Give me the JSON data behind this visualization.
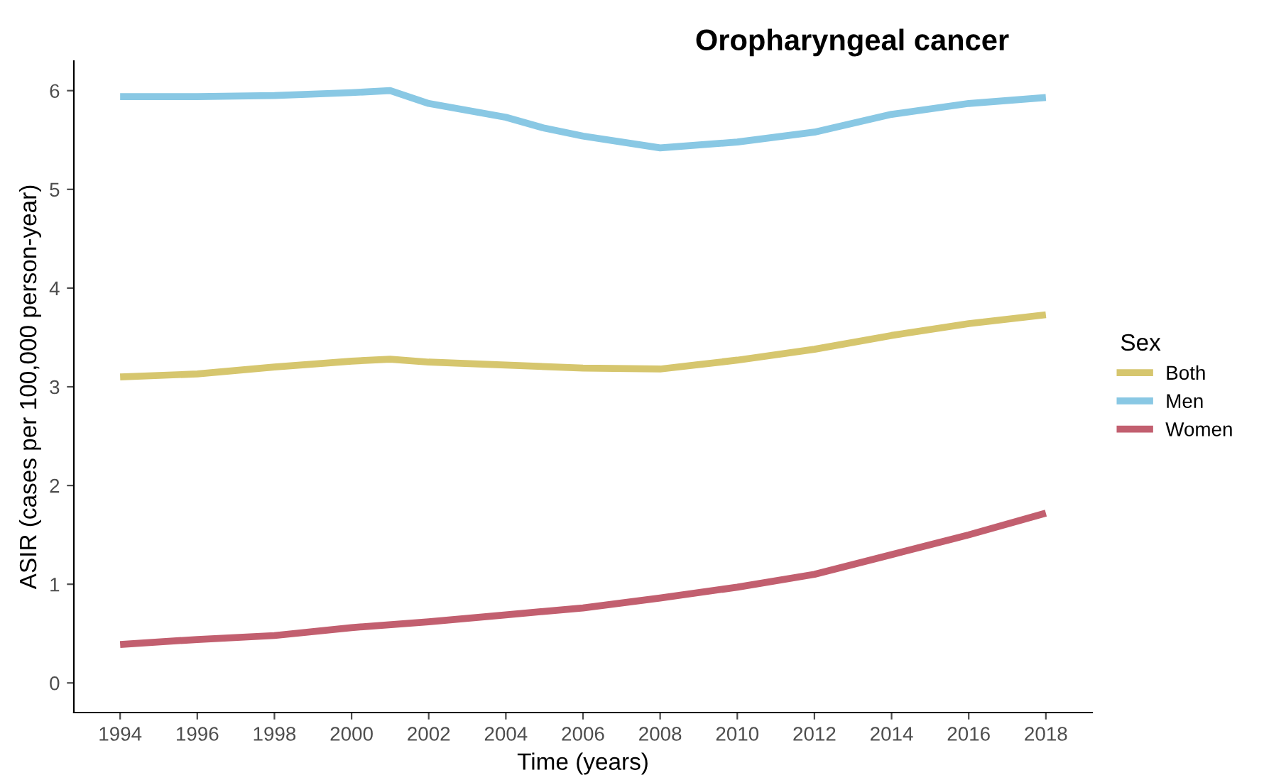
{
  "chart_data": {
    "type": "line",
    "title": "Oropharyngeal cancer",
    "xlabel": "Time (years)",
    "ylabel": "ASIR (cases per 100,000 person-year)",
    "legend_title": "Sex",
    "legend": "right",
    "grid": false,
    "marker": "none",
    "line_style": "solid",
    "xlim": [
      1992.8,
      2019.2
    ],
    "xticks": [
      1994,
      1996,
      1998,
      2000,
      2002,
      2004,
      2006,
      2008,
      2010,
      2012,
      2014,
      2016,
      2018
    ],
    "ylim": [
      -0.3,
      6.3
    ],
    "yticks": [
      0,
      1,
      2,
      3,
      4,
      5,
      6
    ],
    "series": [
      {
        "name": "Both",
        "color": "#d6c66e",
        "x": [
          1994,
          1996,
          1998,
          2000,
          2001,
          2002,
          2004,
          2006,
          2008,
          2010,
          2012,
          2014,
          2016,
          2018
        ],
        "values": [
          3.1,
          3.13,
          3.2,
          3.26,
          3.28,
          3.25,
          3.22,
          3.19,
          3.18,
          3.27,
          3.38,
          3.52,
          3.64,
          3.73
        ]
      },
      {
        "name": "Men",
        "color": "#89c8e4",
        "x": [
          1994,
          1996,
          1998,
          2000,
          2001,
          2002,
          2004,
          2005,
          2006,
          2008,
          2010,
          2012,
          2014,
          2016,
          2018
        ],
        "values": [
          5.94,
          5.94,
          5.95,
          5.98,
          6.0,
          5.87,
          5.73,
          5.62,
          5.54,
          5.42,
          5.48,
          5.58,
          5.76,
          5.87,
          5.93
        ]
      },
      {
        "name": "Women",
        "color": "#c25f6f",
        "x": [
          1994,
          1996,
          1998,
          2000,
          2002,
          2004,
          2006,
          2008,
          2010,
          2012,
          2014,
          2016,
          2018
        ],
        "values": [
          0.39,
          0.44,
          0.48,
          0.56,
          0.62,
          0.69,
          0.76,
          0.86,
          0.97,
          1.1,
          1.3,
          1.5,
          1.72
        ]
      }
    ]
  }
}
